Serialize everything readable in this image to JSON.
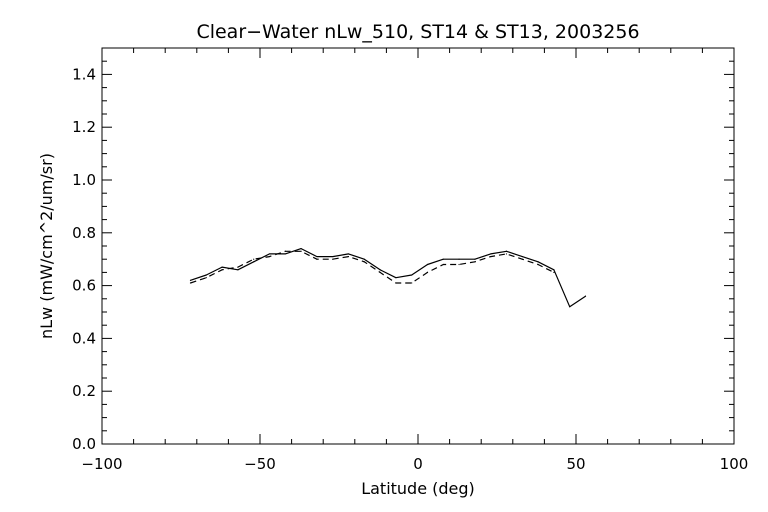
{
  "chart_data": {
    "type": "line",
    "title": "Clear−Water nLw_510, ST14 & ST13, 2003256",
    "xlabel": "Latitude (deg)",
    "ylabel": "nLw (mW/cm^2/um/sr)",
    "xlim": [
      -100,
      100
    ],
    "ylim": [
      0.0,
      1.5
    ],
    "x_ticks": [
      -100,
      -50,
      0,
      50,
      100
    ],
    "x_tick_labels": [
      "−100",
      "−50",
      "0",
      "50",
      "100"
    ],
    "y_ticks": [
      0.0,
      0.2,
      0.4,
      0.6,
      0.8,
      1.0,
      1.2,
      1.4
    ],
    "y_tick_labels": [
      "0.0",
      "0.2",
      "0.4",
      "0.6",
      "0.8",
      "1.0",
      "1.2",
      "1.4"
    ],
    "grid": false,
    "series": [
      {
        "style": "solid",
        "color": "#000000",
        "x": [
          -72,
          -67,
          -62,
          -57,
          -52,
          -47,
          -42,
          -37,
          -32,
          -27,
          -22,
          -17,
          -12,
          -7,
          -2,
          3,
          8,
          13,
          18,
          23,
          28,
          33,
          38,
          43,
          48,
          53
        ],
        "y": [
          0.62,
          0.64,
          0.67,
          0.66,
          0.69,
          0.72,
          0.72,
          0.74,
          0.71,
          0.71,
          0.72,
          0.7,
          0.66,
          0.63,
          0.64,
          0.68,
          0.7,
          0.7,
          0.7,
          0.72,
          0.73,
          0.71,
          0.69,
          0.66,
          0.52,
          0.56
        ]
      },
      {
        "style": "dashed",
        "color": "#000000",
        "x": [
          -72,
          -67,
          -62,
          -57,
          -52,
          -47,
          -42,
          -37,
          -32,
          -27,
          -22,
          -17,
          -12,
          -7,
          -2,
          3,
          8,
          13,
          18,
          23,
          28,
          33,
          38,
          43
        ],
        "y": [
          0.61,
          0.63,
          0.66,
          0.67,
          0.7,
          0.71,
          0.73,
          0.73,
          0.7,
          0.7,
          0.71,
          0.69,
          0.65,
          0.61,
          0.61,
          0.65,
          0.68,
          0.68,
          0.69,
          0.71,
          0.72,
          0.7,
          0.68,
          0.65
        ]
      }
    ]
  }
}
